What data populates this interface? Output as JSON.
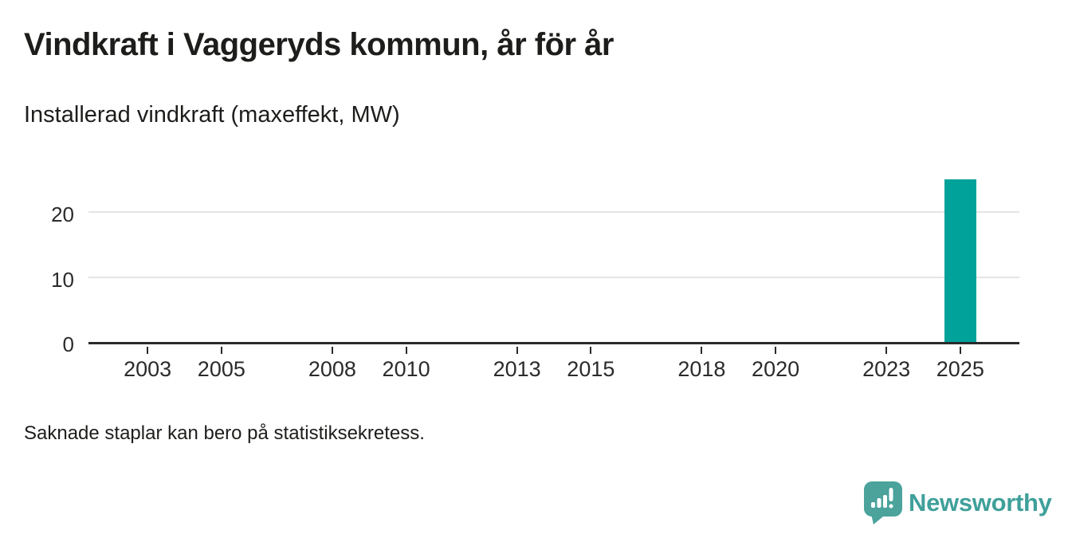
{
  "header": {
    "title": "Vindkraft i Vaggeryds kommun, år för år",
    "subtitle": "Installerad vindkraft (maxeffekt, MW)"
  },
  "footer": {
    "note": "Saknade staplar kan bero på statistiksekretess."
  },
  "branding": {
    "logo_text": "Newsworthy",
    "logo_icon_color": "#4ba39c",
    "logo_bars_color": "#ffffff",
    "logo_text_color": "#3fa09a"
  },
  "colors": {
    "bar_teal": "#00a29a",
    "axis": "#2b2b2b",
    "gridline": "#e4e4e4",
    "text": "#1d1d1b"
  },
  "chart_data": {
    "type": "bar",
    "title": "Vindkraft i Vaggeryds kommun, år för år",
    "subtitle": "Installerad vindkraft (maxeffekt, MW)",
    "xlabel": "",
    "ylabel": "Installerad vindkraft (maxeffekt, MW)",
    "xlim": [
      2001.4,
      2026.6
    ],
    "ylim": [
      0,
      27
    ],
    "x_ticks": [
      2003,
      2005,
      2008,
      2010,
      2013,
      2015,
      2018,
      2020,
      2023,
      2025
    ],
    "y_ticks": [
      0,
      10,
      20
    ],
    "grid": "horizontal",
    "legend": "none",
    "bar_color": "#00a29a",
    "bars": [
      {
        "x": 2025,
        "value": 25
      }
    ]
  }
}
